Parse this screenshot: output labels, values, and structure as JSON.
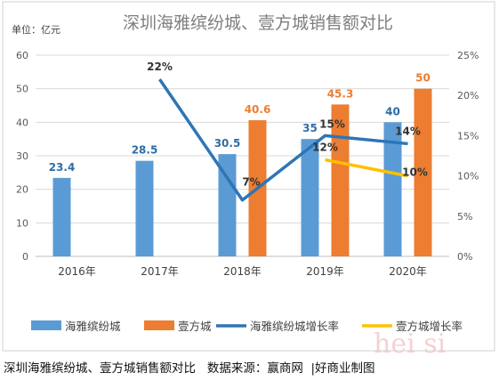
{
  "chart_data": {
    "type": "bar",
    "title": "深圳海雅缤纷城、壹方城销售额对比",
    "unit_label": "单位：亿元",
    "categories": [
      "2016年",
      "2017年",
      "2018年",
      "2019年",
      "2020年"
    ],
    "ylim": [
      0,
      60
    ],
    "yticks": [
      0,
      10,
      20,
      30,
      40,
      50,
      60
    ],
    "y2lim": [
      0,
      25
    ],
    "y2ticks": [
      "0%",
      "5%",
      "10%",
      "15%",
      "20%",
      "25%"
    ],
    "grid": true,
    "legend_position": "bottom",
    "series": [
      {
        "name": "海雅缤纷城",
        "kind": "bar",
        "axis": "left",
        "color": "#5B9BD5",
        "label_color": "#2E6DA4",
        "values": [
          23.4,
          28.5,
          30.5,
          35,
          40
        ],
        "labels": [
          "23.4",
          "28.5",
          "30.5",
          "35",
          "40"
        ]
      },
      {
        "name": "壹方城",
        "kind": "bar",
        "axis": "left",
        "color": "#ED7D31",
        "label_color": "#ED7D31",
        "values": [
          null,
          null,
          40.6,
          45.3,
          50
        ],
        "labels": [
          "",
          "",
          "40.6",
          "45.3",
          "50"
        ]
      },
      {
        "name": "海雅缤纷城增长率",
        "kind": "line",
        "axis": "right",
        "color": "#2E75B6",
        "label_color": "#333333",
        "values": [
          null,
          22,
          7,
          15,
          14
        ],
        "labels": [
          "",
          "22%",
          "7%",
          "15%",
          "14%"
        ]
      },
      {
        "name": "壹方城增长率",
        "kind": "line",
        "axis": "right",
        "color": "#FFC000",
        "label_color": "#333333",
        "values": [
          null,
          null,
          null,
          12,
          10
        ],
        "labels": [
          "",
          "",
          "",
          "12%",
          "10%"
        ]
      }
    ]
  },
  "caption": {
    "text": "深圳海雅缤纷城、壹方城销售额对比",
    "source": "数据来源：赢商网",
    "credit": "|好商业制图"
  },
  "watermark": "hei si"
}
